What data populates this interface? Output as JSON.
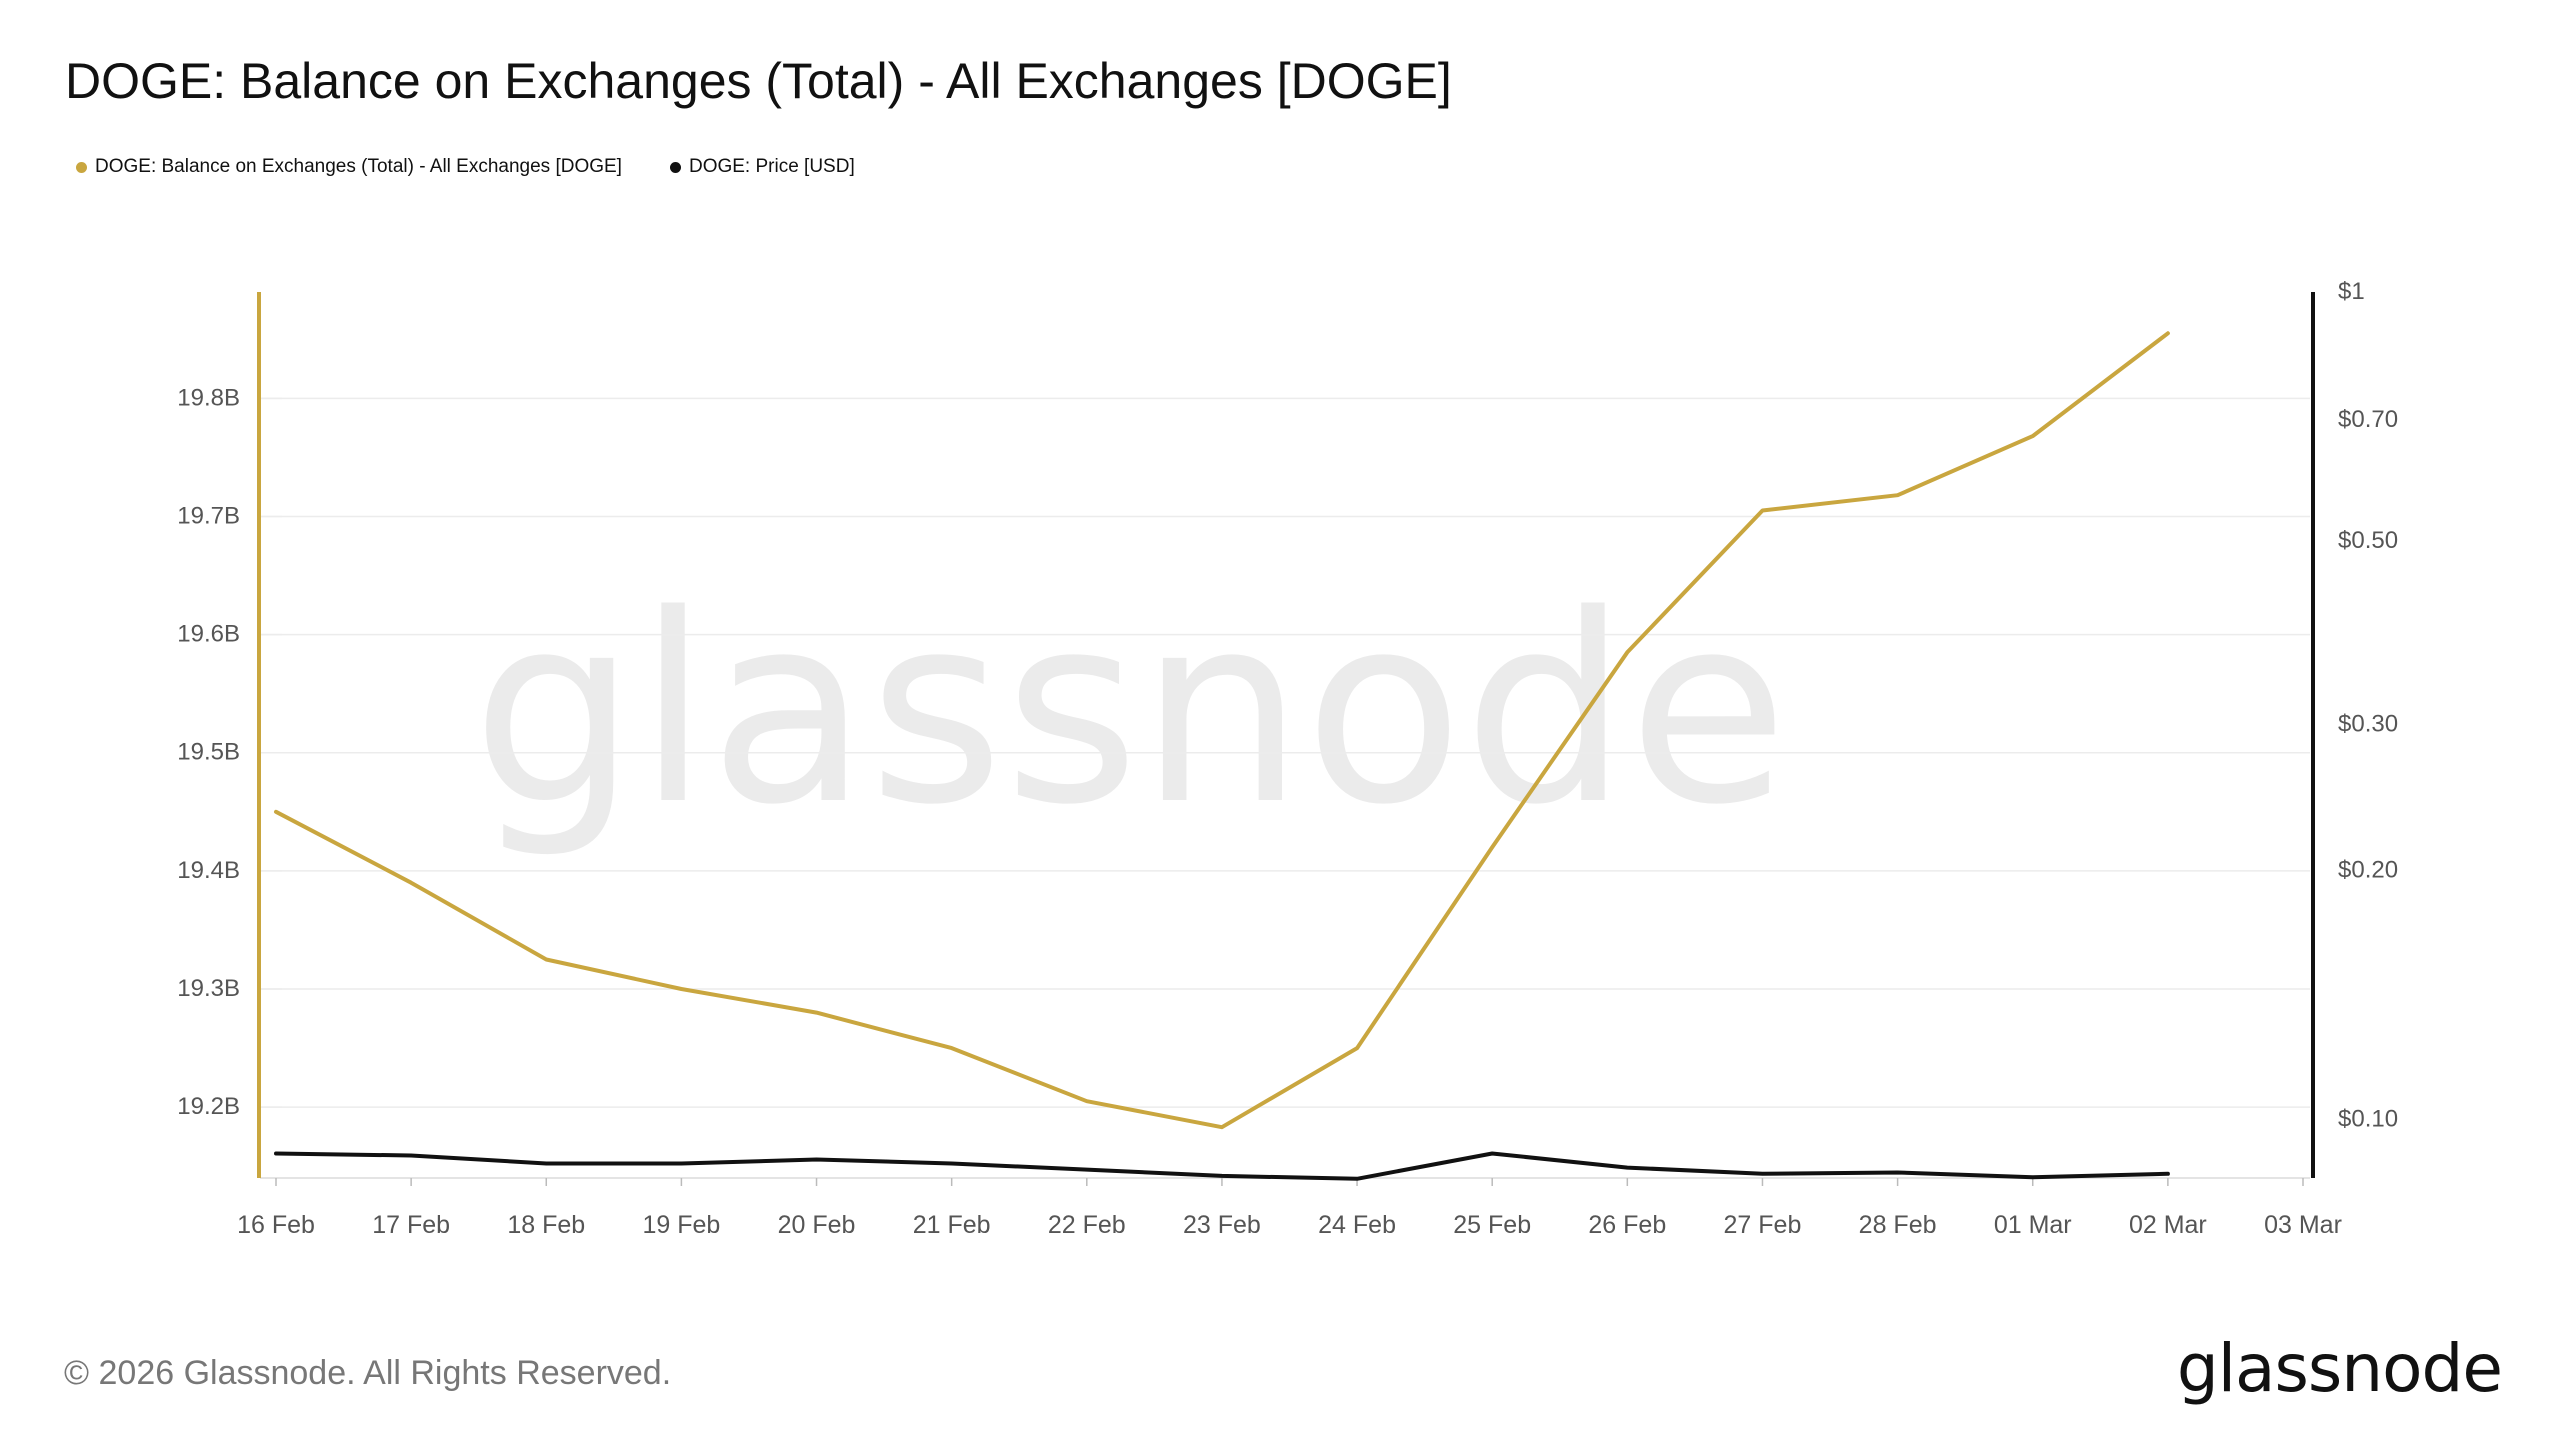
{
  "title": "DOGE: Balance on Exchanges (Total) - All Exchanges [DOGE]",
  "legend": [
    {
      "label": "DOGE: Balance on Exchanges (Total) - All Exchanges [DOGE]",
      "color": "#c9a63f"
    },
    {
      "label": "DOGE: Price [USD]",
      "color": "#111111"
    }
  ],
  "watermark": "glassnode",
  "footer": "© 2026 Glassnode. All Rights Reserved.",
  "logo": "glassnode",
  "chart_data": {
    "type": "line",
    "x": [
      "16 Feb",
      "17 Feb",
      "18 Feb",
      "19 Feb",
      "20 Feb",
      "21 Feb",
      "22 Feb",
      "23 Feb",
      "24 Feb",
      "25 Feb",
      "26 Feb",
      "27 Feb",
      "28 Feb",
      "01 Mar",
      "02 Mar",
      "03 Mar"
    ],
    "series": [
      {
        "name": "DOGE: Balance on Exchanges (Total) - All Exchanges [DOGE]",
        "axis": "left",
        "color": "#c9a63f",
        "values": [
          19.45,
          19.39,
          19.325,
          19.3,
          19.28,
          19.25,
          19.205,
          19.183,
          19.25,
          19.42,
          19.585,
          19.705,
          19.718,
          19.768,
          19.855,
          null
        ]
      },
      {
        "name": "DOGE: Price [USD]",
        "axis": "right",
        "color": "#111111",
        "values": [
          0.091,
          0.0905,
          0.0885,
          0.0885,
          0.0895,
          0.0885,
          0.087,
          0.0855,
          0.0848,
          0.091,
          0.0875,
          0.086,
          0.0863,
          0.0852,
          0.086,
          null
        ]
      }
    ],
    "y_left": {
      "ticks": [
        "19.2B",
        "19.3B",
        "19.4B",
        "19.5B",
        "19.6B",
        "19.7B",
        "19.8B"
      ],
      "tick_values": [
        19.2,
        19.3,
        19.4,
        19.5,
        19.6,
        19.7,
        19.8
      ],
      "range": [
        19.14,
        19.89
      ]
    },
    "y_right": {
      "scale": "log",
      "ticks": [
        "$0.10",
        "$0.20",
        "$0.30",
        "$0.50",
        "$0.70",
        "$1"
      ],
      "tick_values": [
        0.1,
        0.2,
        0.3,
        0.5,
        0.7,
        1
      ],
      "range": [
        0.085,
        1
      ]
    },
    "grid": true
  }
}
